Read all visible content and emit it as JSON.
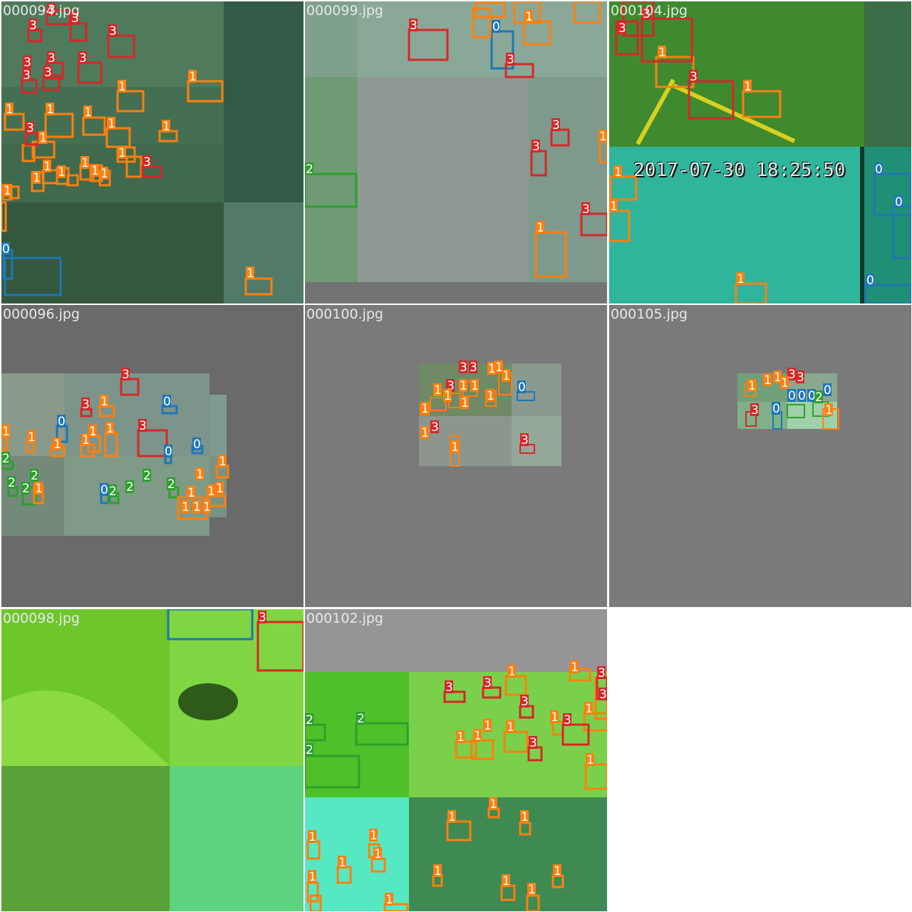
{
  "grid": {
    "tiles": [
      {
        "filename": "000094.jpg"
      },
      {
        "filename": "000099.jpg"
      },
      {
        "filename": "000104.jpg"
      },
      {
        "filename": "000096.jpg"
      },
      {
        "filename": "000100.jpg"
      },
      {
        "filename": "000105.jpg"
      },
      {
        "filename": "000098.jpg"
      },
      {
        "filename": "000102.jpg"
      }
    ],
    "overlay_text": {
      "timestamp": "2017-07-30 18:25:50"
    },
    "class_colors": {
      "0": "#1f77b4",
      "1": "#ff7f0e",
      "2": "#2ca02c",
      "3": "#d62728"
    }
  }
}
